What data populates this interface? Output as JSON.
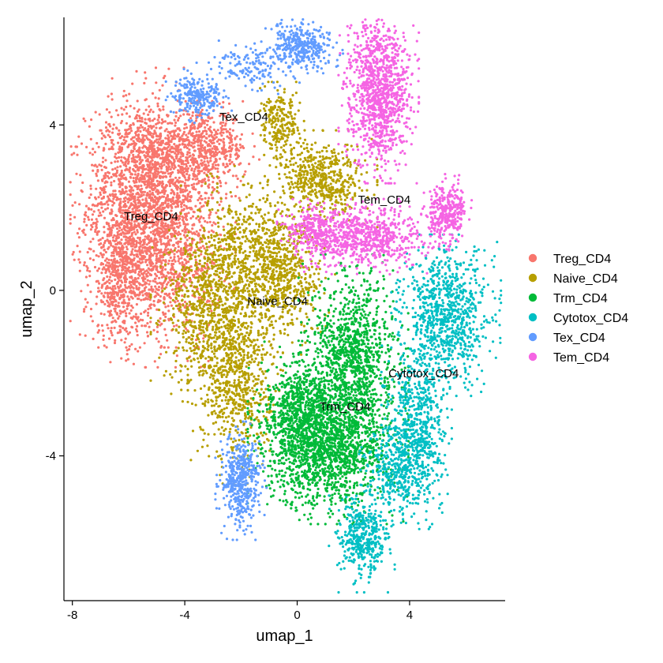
{
  "chart_data": {
    "type": "scatter",
    "title": "",
    "xlabel": "umap_1",
    "ylabel": "umap_2",
    "xlim": [
      -8.3,
      7.4
    ],
    "ylim": [
      -7.5,
      6.6
    ],
    "xticks": [
      -8,
      -4,
      0,
      4
    ],
    "yticks": [
      -4,
      0,
      4
    ],
    "tick_labels_x": [
      "-8",
      "-4",
      "0",
      "4"
    ],
    "tick_labels_y": [
      "-4",
      "0",
      "4"
    ],
    "grid": false,
    "legend_position": "right",
    "series": [
      {
        "name": "Treg_CD4",
        "color": "#F8766D",
        "label": "Treg_CD4",
        "label_pos": [
          -5.2,
          1.7
        ],
        "blobs": [
          {
            "x": -5.6,
            "y": 2.0,
            "sx": 0.95,
            "sy": 1.3,
            "n": 1500
          },
          {
            "x": -4.4,
            "y": 1.0,
            "sx": 0.85,
            "sy": 1.1,
            "n": 800
          },
          {
            "x": -6.3,
            "y": 0.3,
            "sx": 0.55,
            "sy": 0.8,
            "n": 500
          },
          {
            "x": -3.3,
            "y": 3.4,
            "sx": 0.75,
            "sy": 0.45,
            "n": 550
          },
          {
            "x": -5.0,
            "y": 3.2,
            "sx": 0.9,
            "sy": 0.6,
            "n": 450
          }
        ]
      },
      {
        "name": "Naive_CD4",
        "color": "#B79F00",
        "label": "Naive_CD4",
        "label_pos": [
          -0.7,
          -0.35
        ],
        "blobs": [
          {
            "x": -3.0,
            "y": -0.4,
            "sx": 0.85,
            "sy": 0.9,
            "n": 850
          },
          {
            "x": -2.2,
            "y": -2.2,
            "sx": 0.65,
            "sy": 0.95,
            "n": 650
          },
          {
            "x": -0.6,
            "y": 0.4,
            "sx": 0.75,
            "sy": 0.75,
            "n": 650
          },
          {
            "x": 0.9,
            "y": 2.7,
            "sx": 0.75,
            "sy": 0.45,
            "n": 550
          },
          {
            "x": -0.6,
            "y": 4.0,
            "sx": 0.35,
            "sy": 0.4,
            "n": 220
          },
          {
            "x": -1.8,
            "y": 1.2,
            "sx": 0.9,
            "sy": 0.7,
            "n": 400
          }
        ]
      },
      {
        "name": "Trm_CD4",
        "color": "#00BA38",
        "label": "Trm_CD4",
        "label_pos": [
          1.7,
          -2.9
        ],
        "blobs": [
          {
            "x": 1.1,
            "y": -3.7,
            "sx": 1.1,
            "sy": 0.75,
            "n": 1800
          },
          {
            "x": 2.0,
            "y": -1.6,
            "sx": 0.75,
            "sy": 0.95,
            "n": 1100
          },
          {
            "x": 0.0,
            "y": -2.8,
            "sx": 0.6,
            "sy": 0.6,
            "n": 400
          }
        ]
      },
      {
        "name": "Cytotox_CD4",
        "color": "#00BFC4",
        "label": "Cytotox_CD4",
        "label_pos": [
          4.5,
          -2.1
        ],
        "blobs": [
          {
            "x": 5.3,
            "y": -0.6,
            "sx": 0.75,
            "sy": 0.75,
            "n": 850
          },
          {
            "x": 4.3,
            "y": -3.3,
            "sx": 0.5,
            "sy": 0.95,
            "n": 700
          },
          {
            "x": 2.3,
            "y": -6.0,
            "sx": 0.45,
            "sy": 0.5,
            "n": 420
          },
          {
            "x": 3.5,
            "y": -4.4,
            "sx": 0.5,
            "sy": 0.5,
            "n": 300
          }
        ]
      },
      {
        "name": "Tex_CD4",
        "color": "#619CFF",
        "label": "Tex_CD4",
        "label_pos": [
          -1.9,
          4.1
        ],
        "blobs": [
          {
            "x": -2.0,
            "y": -4.6,
            "sx": 0.35,
            "sy": 0.55,
            "n": 480
          },
          {
            "x": 0.2,
            "y": 5.9,
            "sx": 0.55,
            "sy": 0.25,
            "n": 350
          },
          {
            "x": -3.5,
            "y": 4.7,
            "sx": 0.45,
            "sy": 0.25,
            "n": 230
          },
          {
            "x": -1.5,
            "y": 5.4,
            "sx": 0.8,
            "sy": 0.25,
            "n": 150
          }
        ]
      },
      {
        "name": "Tem_CD4",
        "color": "#F564E3",
        "label": "Tem_CD4",
        "label_pos": [
          3.1,
          2.1
        ],
        "blobs": [
          {
            "x": 2.9,
            "y": 4.8,
            "sx": 0.55,
            "sy": 0.85,
            "n": 1100
          },
          {
            "x": 2.4,
            "y": 1.3,
            "sx": 1.2,
            "sy": 0.35,
            "n": 800
          },
          {
            "x": 5.3,
            "y": 1.9,
            "sx": 0.35,
            "sy": 0.35,
            "n": 320
          },
          {
            "x": 0.6,
            "y": 1.5,
            "sx": 0.45,
            "sy": 0.25,
            "n": 200
          }
        ]
      }
    ]
  }
}
